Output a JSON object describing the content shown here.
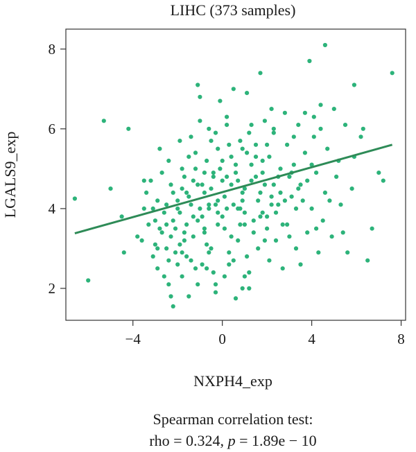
{
  "chart_data": {
    "type": "scatter",
    "title": "LIHC (373 samples)",
    "xlabel": "NXPH4_exp",
    "ylabel": "LGALS9_exp",
    "xlim": [
      -7,
      8.2
    ],
    "ylim": [
      1.2,
      8.5
    ],
    "xticks": [
      -4,
      0,
      4,
      8
    ],
    "xtick_labels": [
      "−4",
      "0",
      "4",
      "8"
    ],
    "yticks": [
      2,
      4,
      6,
      8
    ],
    "ytick_labels": [
      "2",
      "4",
      "6",
      "8"
    ],
    "grid": false,
    "colors": {
      "points": "#2db37a",
      "line": "#2e8b57",
      "axis": "#333333"
    },
    "regression": {
      "x": [
        -6.6,
        7.6
      ],
      "y": [
        3.38,
        5.6
      ]
    },
    "stats": {
      "heading": "Spearman correlation test:",
      "rho_text": "rho = 0.324,",
      "p_symbol": "p",
      "p_text": "= 1.89e − 10"
    },
    "points": [
      [
        -6.6,
        4.25
      ],
      [
        -6.0,
        2.2
      ],
      [
        -5.3,
        6.2
      ],
      [
        -5.0,
        4.5
      ],
      [
        -4.5,
        3.8
      ],
      [
        -4.2,
        6.0
      ],
      [
        -4.4,
        2.9
      ],
      [
        -3.8,
        3.3
      ],
      [
        -3.5,
        4.7
      ],
      [
        -3.5,
        4.0
      ],
      [
        -3.3,
        3.6
      ],
      [
        -3.2,
        4.7
      ],
      [
        -3.1,
        2.8
      ],
      [
        -3.0,
        3.1
      ],
      [
        -2.9,
        2.5
      ],
      [
        -2.8,
        5.5
      ],
      [
        -2.7,
        3.4
      ],
      [
        -2.6,
        2.3
      ],
      [
        -2.5,
        3.0
      ],
      [
        -2.4,
        2.1
      ],
      [
        -2.3,
        1.8
      ],
      [
        -2.2,
        1.55
      ],
      [
        -2.1,
        3.5
      ],
      [
        -2.0,
        4.2
      ],
      [
        -1.9,
        3.9
      ],
      [
        -1.8,
        2.9
      ],
      [
        -1.7,
        3.2
      ],
      [
        -1.6,
        4.4
      ],
      [
        -1.5,
        1.8
      ],
      [
        -1.4,
        2.7
      ],
      [
        -1.3,
        3.8
      ],
      [
        -1.2,
        5.0
      ],
      [
        -1.1,
        7.1
      ],
      [
        -1.0,
        6.8
      ],
      [
        -0.9,
        4.6
      ],
      [
        -0.8,
        3.4
      ],
      [
        -0.7,
        2.5
      ],
      [
        -0.6,
        4.1
      ],
      [
        -0.5,
        3.0
      ],
      [
        -0.4,
        4.9
      ],
      [
        -0.3,
        2.1
      ],
      [
        -0.2,
        3.6
      ],
      [
        -0.1,
        6.7
      ],
      [
        0.0,
        5.2
      ],
      [
        0.1,
        4.3
      ],
      [
        0.2,
        6.1
      ],
      [
        0.3,
        2.9
      ],
      [
        0.4,
        3.3
      ],
      [
        0.5,
        7.0
      ],
      [
        0.6,
        1.75
      ],
      [
        0.7,
        4.0
      ],
      [
        0.8,
        3.6
      ],
      [
        0.9,
        5.5
      ],
      [
        1.0,
        2.3
      ],
      [
        1.1,
        6.9
      ],
      [
        1.2,
        2.0
      ],
      [
        1.3,
        4.7
      ],
      [
        1.4,
        3.7
      ],
      [
        1.5,
        5.3
      ],
      [
        1.6,
        3.0
      ],
      [
        1.7,
        7.4
      ],
      [
        1.8,
        4.9
      ],
      [
        1.9,
        6.2
      ],
      [
        2.0,
        3.8
      ],
      [
        2.1,
        2.7
      ],
      [
        2.2,
        4.3
      ],
      [
        2.3,
        5.9
      ],
      [
        2.4,
        3.2
      ],
      [
        2.5,
        4.1
      ],
      [
        2.6,
        5.0
      ],
      [
        2.7,
        2.5
      ],
      [
        2.8,
        6.4
      ],
      [
        2.9,
        3.6
      ],
      [
        3.0,
        4.8
      ],
      [
        3.1,
        4.3
      ],
      [
        3.2,
        5.8
      ],
      [
        3.3,
        3.0
      ],
      [
        3.4,
        4.5
      ],
      [
        3.5,
        2.6
      ],
      [
        3.7,
        5.4
      ],
      [
        3.8,
        3.4
      ],
      [
        3.9,
        7.7
      ],
      [
        4.0,
        4.0
      ],
      [
        4.1,
        6.3
      ],
      [
        4.2,
        4.9
      ],
      [
        4.3,
        2.9
      ],
      [
        4.4,
        6.6
      ],
      [
        4.5,
        3.7
      ],
      [
        4.6,
        8.1
      ],
      [
        4.7,
        5.5
      ],
      [
        4.8,
        4.2
      ],
      [
        4.9,
        3.3
      ],
      [
        5.0,
        6.5
      ],
      [
        5.1,
        4.8
      ],
      [
        5.2,
        5.2
      ],
      [
        5.4,
        3.4
      ],
      [
        5.5,
        6.1
      ],
      [
        5.6,
        2.9
      ],
      [
        5.8,
        4.5
      ],
      [
        5.9,
        5.3
      ],
      [
        6.2,
        5.8
      ],
      [
        6.5,
        2.7
      ],
      [
        6.7,
        3.5
      ],
      [
        7.0,
        4.9
      ],
      [
        7.2,
        4.7
      ],
      [
        7.6,
        7.4
      ],
      [
        5.9,
        7.1
      ],
      [
        6.3,
        6.0
      ],
      [
        -0.5,
        5.7
      ],
      [
        -0.8,
        4.9
      ],
      [
        0.2,
        4.8
      ],
      [
        1.5,
        5.6
      ],
      [
        0.9,
        4.4
      ],
      [
        -1.5,
        5.3
      ],
      [
        -1.8,
        5.0
      ],
      [
        -2.3,
        4.6
      ],
      [
        -2.5,
        4.1
      ],
      [
        -2.8,
        3.5
      ],
      [
        -3.1,
        4.0
      ],
      [
        -0.6,
        4.0
      ],
      [
        -0.2,
        4.2
      ],
      [
        0.5,
        4.1
      ],
      [
        1.0,
        4.5
      ],
      [
        1.8,
        3.9
      ],
      [
        2.7,
        3.6
      ],
      [
        3.5,
        4.6
      ],
      [
        -1.3,
        3.3
      ],
      [
        -0.7,
        3.1
      ],
      [
        -2.1,
        2.9
      ],
      [
        -1.9,
        5.7
      ],
      [
        -1.0,
        6.2
      ],
      [
        -0.3,
        5.9
      ],
      [
        0.4,
        5.3
      ],
      [
        1.2,
        5.9
      ],
      [
        2.0,
        5.6
      ],
      [
        -2.7,
        4.9
      ],
      [
        -3.6,
        3.2
      ],
      [
        -1.6,
        3.6
      ],
      [
        -0.9,
        3.8
      ],
      [
        0.1,
        3.5
      ],
      [
        0.7,
        3.2
      ],
      [
        1.4,
        3.4
      ],
      [
        2.3,
        4.6
      ],
      [
        3.2,
        5.1
      ],
      [
        -2.0,
        2.6
      ],
      [
        -1.2,
        2.5
      ],
      [
        -0.4,
        2.4
      ],
      [
        0.3,
        2.6
      ],
      [
        1.1,
        2.8
      ],
      [
        -2.2,
        3.7
      ],
      [
        -1.4,
        4.1
      ],
      [
        -0.8,
        4.4
      ],
      [
        0.0,
        4.7
      ],
      [
        0.6,
        4.9
      ],
      [
        1.3,
        5.1
      ],
      [
        2.1,
        5.3
      ],
      [
        -2.4,
        5.2
      ],
      [
        -1.7,
        4.8
      ],
      [
        -0.1,
        5.0
      ],
      [
        0.8,
        5.7
      ],
      [
        1.6,
        4.2
      ],
      [
        2.5,
        4.8
      ],
      [
        3.3,
        4.0
      ],
      [
        4.0,
        5.1
      ],
      [
        4.6,
        4.4
      ],
      [
        5.3,
        4.1
      ],
      [
        -3.4,
        4.4
      ],
      [
        -2.9,
        4.2
      ],
      [
        -1.1,
        4.6
      ],
      [
        -0.5,
        4.5
      ],
      [
        0.2,
        4.0
      ],
      [
        1.0,
        3.9
      ],
      [
        1.7,
        4.4
      ],
      [
        2.4,
        3.9
      ],
      [
        -1.9,
        3.1
      ],
      [
        -0.6,
        2.9
      ],
      [
        0.5,
        2.7
      ],
      [
        1.9,
        3.2
      ],
      [
        3.0,
        3.3
      ],
      [
        4.2,
        3.5
      ],
      [
        -2.6,
        3.9
      ],
      [
        -1.5,
        4.3
      ],
      [
        -0.3,
        4.1
      ],
      [
        0.9,
        4.2
      ],
      [
        2.2,
        4.1
      ],
      [
        3.6,
        4.2
      ],
      [
        -1.2,
        5.4
      ],
      [
        -0.2,
        5.5
      ],
      [
        0.6,
        5.1
      ],
      [
        1.8,
        5.2
      ],
      [
        2.9,
        5.6
      ],
      [
        4.1,
        5.8
      ],
      [
        -2.2,
        4.4
      ],
      [
        -1.0,
        4.0
      ],
      [
        0.4,
        4.6
      ],
      [
        1.5,
        4.8
      ],
      [
        2.6,
        4.4
      ],
      [
        3.8,
        4.7
      ],
      [
        -3.0,
        3.7
      ],
      [
        -2.3,
        3.3
      ],
      [
        -1.6,
        2.8
      ],
      [
        -0.9,
        2.6
      ],
      [
        0.1,
        2.3
      ],
      [
        1.2,
        2.4
      ],
      [
        -0.7,
        5.2
      ],
      [
        0.3,
        5.6
      ],
      [
        1.1,
        5.4
      ],
      [
        2.3,
        6.0
      ],
      [
        3.4,
        6.1
      ],
      [
        4.4,
        6.0
      ],
      [
        -1.8,
        4.5
      ],
      [
        -1.3,
        4.7
      ],
      [
        -0.4,
        4.8
      ],
      [
        0.7,
        4.7
      ],
      [
        1.9,
        4.6
      ],
      [
        3.1,
        4.9
      ],
      [
        -2.5,
        3.6
      ],
      [
        -1.7,
        3.4
      ],
      [
        -0.8,
        3.5
      ],
      [
        0.0,
        3.8
      ],
      [
        1.0,
        3.6
      ],
      [
        2.0,
        3.5
      ],
      [
        -2.0,
        4.0
      ],
      [
        -1.1,
        3.7
      ],
      [
        -0.2,
        3.9
      ],
      [
        0.8,
        4.0
      ],
      [
        1.7,
        3.8
      ],
      [
        2.8,
        4.2
      ],
      [
        -1.4,
        5.8
      ],
      [
        -0.6,
        6.0
      ],
      [
        0.2,
        6.3
      ],
      [
        1.3,
        6.1
      ],
      [
        2.2,
        6.5
      ],
      [
        3.7,
        6.4
      ],
      [
        -2.9,
        3.0
      ],
      [
        -2.4,
        2.7
      ],
      [
        -1.8,
        2.3
      ],
      [
        -1.1,
        2.1
      ],
      [
        -0.3,
        1.9
      ],
      [
        0.9,
        2.0
      ]
    ]
  }
}
